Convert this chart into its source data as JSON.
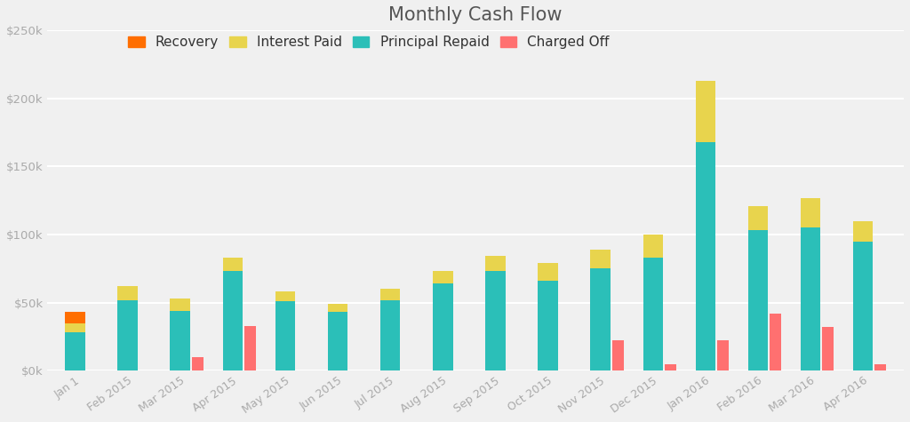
{
  "title": "Monthly Cash Flow",
  "background_color": "#f0f0f0",
  "plot_bg_color": "#f0f0f0",
  "categories": [
    "Jan 1",
    "Feb 2015",
    "Mar 2015",
    "Apr 2015",
    "May 2015",
    "Jun 2015",
    "Jul 2015",
    "Aug 2015",
    "Sep 2015",
    "Oct 2015",
    "Nov 2015",
    "Dec 2015",
    "Jan 2016",
    "Feb 2016",
    "Mar 2016",
    "Apr 2016"
  ],
  "recovery": [
    8000,
    0,
    0,
    0,
    0,
    0,
    0,
    0,
    0,
    0,
    0,
    0,
    0,
    0,
    0,
    0
  ],
  "interest_paid": [
    7000,
    10000,
    9000,
    10000,
    7000,
    6000,
    8000,
    9000,
    11000,
    13000,
    14000,
    17000,
    45000,
    18000,
    22000,
    15000
  ],
  "principal_repaid": [
    28000,
    52000,
    44000,
    73000,
    51000,
    43000,
    52000,
    64000,
    73000,
    66000,
    75000,
    83000,
    168000,
    103000,
    105000,
    95000
  ],
  "charged_off": [
    0,
    0,
    10000,
    33000,
    0,
    0,
    0,
    0,
    0,
    0,
    22000,
    5000,
    22000,
    42000,
    32000,
    5000
  ],
  "colors": {
    "recovery": "#ff6e00",
    "interest_paid": "#e8d44d",
    "principal_repaid": "#2bbfb8",
    "charged_off": "#ff7070"
  },
  "ylim": [
    0,
    250000
  ],
  "yticks": [
    0,
    50000,
    100000,
    150000,
    200000,
    250000
  ],
  "ytick_labels": [
    "$0k",
    "$50k",
    "$100k",
    "$150k",
    "$200k",
    "$250k"
  ],
  "title_fontsize": 15,
  "tick_fontsize": 9.5,
  "legend_fontsize": 11,
  "stacked_bar_width": 0.38,
  "co_bar_width": 0.22
}
